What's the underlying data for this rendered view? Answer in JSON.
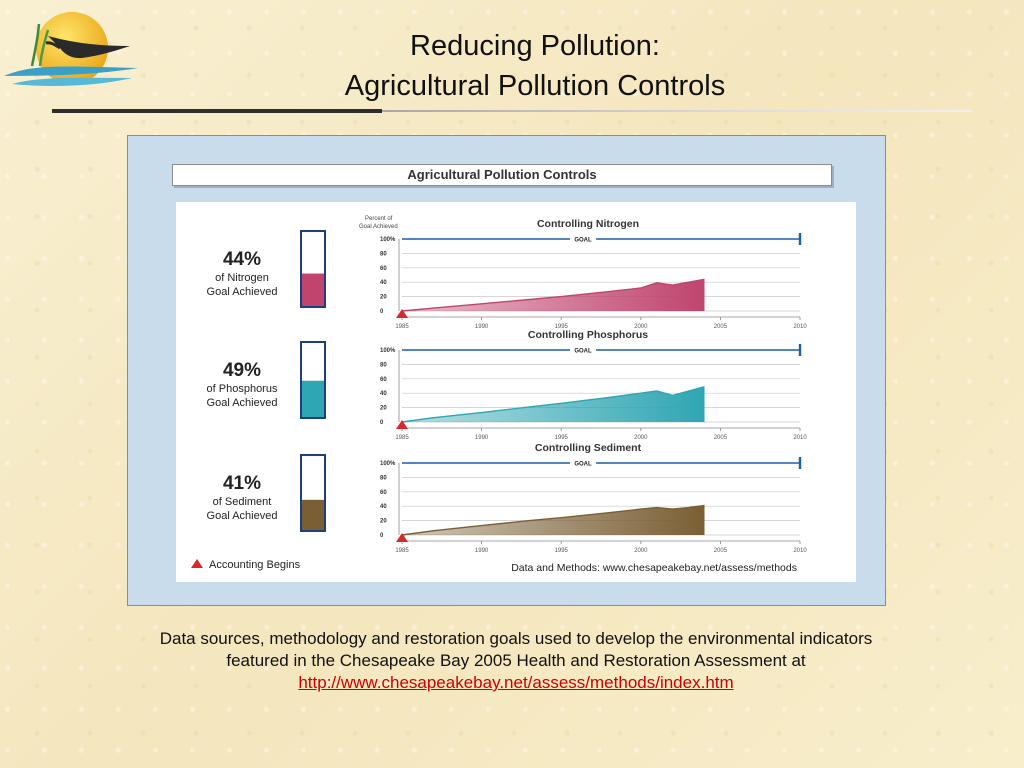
{
  "slide": {
    "title_line1": "Reducing Pollution:",
    "title_line2": "Agricultural Pollution Controls",
    "caption_line1": "Data sources, methodology and restoration goals used to develop the environmental indicators",
    "caption_line2": "featured in the Chesapeake Bay 2005 Health and Restoration Assessment at",
    "caption_link": "http://www.chesapeakebay.net/assess/methods/index.htm"
  },
  "colors": {
    "nitrogen": "#c0446e",
    "phosphorus": "#2fa6b3",
    "sediment": "#7a5f34",
    "goal_line": "#1a5fa8",
    "marker": "#d42a2a"
  },
  "chart_data": {
    "type": "area",
    "title": "Agricultural Pollution Controls",
    "ylabel": "Percent of Goal Achieved",
    "goal_label": "GOAL",
    "legend_marker_label": "Accounting Begins",
    "source_note": "Data and Methods: www.chesapeakebay.net/assess/methods",
    "xlim": [
      1985,
      2010
    ],
    "ylim": [
      0,
      100
    ],
    "x_ticks": [
      "1985",
      "1990",
      "1995",
      "2000",
      "2005",
      "2010"
    ],
    "y_ticks": [
      "100%",
      "80",
      "60",
      "40",
      "20",
      "0"
    ],
    "goal_value": 100,
    "goal_end_year": 2010,
    "accounting_begins_year": 1985,
    "series": [
      {
        "key": "nitrogen",
        "name": "Controlling Nitrogen",
        "percent_label": "44%",
        "gauge_line1": "of Nitrogen",
        "gauge_line2": "Goal Achieved",
        "gauge_value": 44,
        "x": [
          1985,
          1987,
          1990,
          1993,
          1995,
          1998,
          2000,
          2001,
          2002,
          2003,
          2004
        ],
        "y": [
          0,
          4,
          10,
          16,
          20,
          27,
          32,
          39,
          36,
          40,
          44
        ]
      },
      {
        "key": "phosphorus",
        "name": "Controlling Phosphorus",
        "percent_label": "49%",
        "gauge_line1": "of Phosphorus",
        "gauge_line2": "Goal Achieved",
        "gauge_value": 49,
        "x": [
          1985,
          1987,
          1990,
          1993,
          1995,
          1998,
          2000,
          2001,
          2002,
          2003,
          2004
        ],
        "y": [
          0,
          6,
          13,
          21,
          26,
          34,
          40,
          43,
          37,
          43,
          49
        ]
      },
      {
        "key": "sediment",
        "name": "Controlling Sediment",
        "percent_label": "41%",
        "gauge_line1": "of Sediment",
        "gauge_line2": "Goal Achieved",
        "gauge_value": 41,
        "x": [
          1985,
          1987,
          1990,
          1993,
          1995,
          1998,
          2000,
          2001,
          2002,
          2003,
          2004
        ],
        "y": [
          0,
          6,
          13,
          20,
          24,
          31,
          36,
          38,
          36,
          38,
          41
        ]
      }
    ]
  }
}
